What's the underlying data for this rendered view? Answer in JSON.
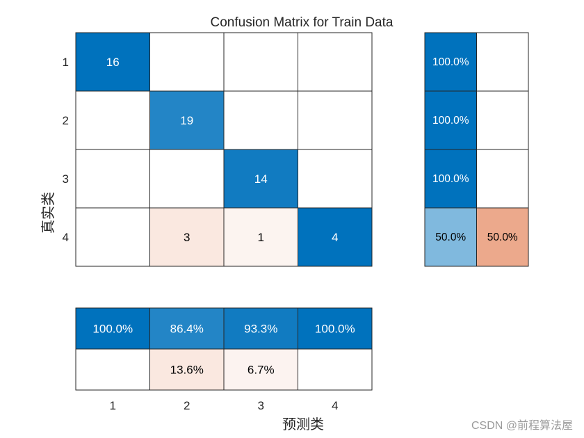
{
  "chart_data": {
    "type": "heatmap",
    "title": "Confusion Matrix for Train Data",
    "xlabel": "预测类",
    "ylabel": "真实类",
    "x_tick_labels": [
      "1",
      "2",
      "3",
      "4"
    ],
    "y_tick_labels": [
      "1",
      "2",
      "3",
      "4"
    ],
    "matrix": [
      [
        16,
        0,
        0,
        0
      ],
      [
        0,
        19,
        0,
        0
      ],
      [
        0,
        0,
        14,
        0
      ],
      [
        0,
        3,
        1,
        4
      ]
    ],
    "row_summary": [
      [
        "100.0%",
        ""
      ],
      [
        "100.0%",
        ""
      ],
      [
        "100.0%",
        ""
      ],
      [
        "50.0%",
        "50.0%"
      ]
    ],
    "column_summary": [
      [
        "100.0%",
        "86.4%",
        "93.3%",
        "100.0%"
      ],
      [
        "",
        "13.6%",
        "6.7%",
        ""
      ]
    ],
    "colors": {
      "correct": "#0072bd",
      "incorrect": "#d95319"
    }
  },
  "watermark": "CSDN @前程算法屋"
}
